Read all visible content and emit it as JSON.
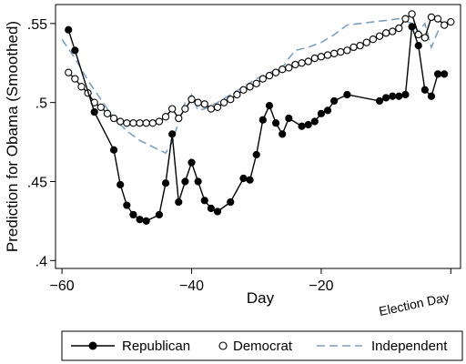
{
  "chart_data": {
    "type": "line",
    "title": "",
    "xlabel": "Day",
    "ylabel": "Prediction for Obama (Smoothed)",
    "xlim": [
      -61,
      1.5
    ],
    "ylim": [
      0.395,
      0.562
    ],
    "xticks": [
      -60,
      -40,
      -20
    ],
    "xtick_labels": [
      "−60",
      "−40",
      "−20"
    ],
    "yticks": [
      0.4,
      0.45,
      0.5,
      0.55
    ],
    "ytick_labels": [
      ".4",
      ".45",
      ".5",
      ".55"
    ],
    "grid": false,
    "legend_position": "bottom",
    "annotations": [
      {
        "text": "Election Day",
        "x": 0
      }
    ],
    "series": [
      {
        "name": "Republican",
        "style": "solid line, filled circle markers",
        "color": "#000000",
        "points": [
          [
            -59,
            0.546
          ],
          [
            -58,
            0.533
          ],
          [
            -55,
            0.494
          ],
          [
            -52,
            0.47
          ],
          [
            -51,
            0.448
          ],
          [
            -50,
            0.435
          ],
          [
            -49,
            0.429
          ],
          [
            -48,
            0.426
          ],
          [
            -47,
            0.425
          ],
          [
            -45,
            0.429
          ],
          [
            -44,
            0.449
          ],
          [
            -43,
            0.48
          ],
          [
            -42,
            0.437
          ],
          [
            -41,
            0.45
          ],
          [
            -40,
            0.462
          ],
          [
            -39,
            0.45
          ],
          [
            -38,
            0.438
          ],
          [
            -37,
            0.433
          ],
          [
            -36,
            0.431
          ],
          [
            -34,
            0.437
          ],
          [
            -32,
            0.452
          ],
          [
            -31,
            0.451
          ],
          [
            -30,
            0.467
          ],
          [
            -29,
            0.489
          ],
          [
            -28,
            0.498
          ],
          [
            -27,
            0.487
          ],
          [
            -26,
            0.48
          ],
          [
            -25,
            0.49
          ],
          [
            -23,
            0.485
          ],
          [
            -22,
            0.486
          ],
          [
            -21,
            0.488
          ],
          [
            -20,
            0.493
          ],
          [
            -19,
            0.495
          ],
          [
            -18,
            0.501
          ],
          [
            -16,
            0.505
          ],
          [
            -11,
            0.501
          ],
          [
            -10,
            0.503
          ],
          [
            -9,
            0.504
          ],
          [
            -8,
            0.504
          ],
          [
            -7,
            0.505
          ],
          [
            -6,
            0.548
          ],
          [
            -5,
            0.536
          ],
          [
            -4,
            0.508
          ],
          [
            -3,
            0.504
          ],
          [
            -2,
            0.518
          ],
          [
            -1,
            0.518
          ]
        ]
      },
      {
        "name": "Democrat",
        "style": "solid line, hollow circle markers",
        "color": "#000000",
        "points": [
          [
            -59,
            0.519
          ],
          [
            -58,
            0.515
          ],
          [
            -57,
            0.51
          ],
          [
            -56,
            0.506
          ],
          [
            -55,
            0.5
          ],
          [
            -54,
            0.497
          ],
          [
            -53,
            0.493
          ],
          [
            -52,
            0.49
          ],
          [
            -51,
            0.488
          ],
          [
            -50,
            0.487
          ],
          [
            -49,
            0.487
          ],
          [
            -48,
            0.487
          ],
          [
            -47,
            0.487
          ],
          [
            -46,
            0.487
          ],
          [
            -45,
            0.488
          ],
          [
            -44,
            0.491
          ],
          [
            -43,
            0.496
          ],
          [
            -42,
            0.49
          ],
          [
            -41,
            0.496
          ],
          [
            -40,
            0.502
          ],
          [
            -39,
            0.5
          ],
          [
            -38,
            0.499
          ],
          [
            -37,
            0.496
          ],
          [
            -36,
            0.497
          ],
          [
            -35,
            0.5
          ],
          [
            -34,
            0.502
          ],
          [
            -33,
            0.505
          ],
          [
            -32,
            0.508
          ],
          [
            -31,
            0.51
          ],
          [
            -30,
            0.512
          ],
          [
            -29,
            0.515
          ],
          [
            -28,
            0.517
          ],
          [
            -27,
            0.519
          ],
          [
            -26,
            0.521
          ],
          [
            -25,
            0.522
          ],
          [
            -24,
            0.524
          ],
          [
            -23,
            0.525
          ],
          [
            -22,
            0.526
          ],
          [
            -21,
            0.528
          ],
          [
            -20,
            0.529
          ],
          [
            -19,
            0.53
          ],
          [
            -18,
            0.531
          ],
          [
            -17,
            0.532
          ],
          [
            -16,
            0.533
          ],
          [
            -15,
            0.535
          ],
          [
            -14,
            0.536
          ],
          [
            -13,
            0.538
          ],
          [
            -12,
            0.54
          ],
          [
            -11,
            0.542
          ],
          [
            -10,
            0.544
          ],
          [
            -9,
            0.545
          ],
          [
            -8,
            0.547
          ],
          [
            -7,
            0.553
          ],
          [
            -6,
            0.556
          ],
          [
            -5,
            0.543
          ],
          [
            -4,
            0.541
          ],
          [
            -3,
            0.554
          ],
          [
            -2,
            0.553
          ],
          [
            -1,
            0.549
          ],
          [
            0,
            0.551
          ]
        ]
      },
      {
        "name": "Independent",
        "style": "dashed line, no markers",
        "color": "#7f9fbf",
        "points": [
          [
            -60,
            0.54
          ],
          [
            -58,
            0.528
          ],
          [
            -56,
            0.514
          ],
          [
            -54,
            0.502
          ],
          [
            -52,
            0.49
          ],
          [
            -50,
            0.482
          ],
          [
            -48,
            0.476
          ],
          [
            -46,
            0.472
          ],
          [
            -44,
            0.468
          ],
          [
            -43,
            0.475
          ],
          [
            -42,
            0.488
          ],
          [
            -41,
            0.5
          ],
          [
            -40,
            0.505
          ],
          [
            -39,
            0.495
          ],
          [
            -38,
            0.496
          ],
          [
            -36,
            0.5
          ],
          [
            -34,
            0.505
          ],
          [
            -32,
            0.51
          ],
          [
            -30,
            0.515
          ],
          [
            -28,
            0.519
          ],
          [
            -26,
            0.522
          ],
          [
            -25,
            0.528
          ],
          [
            -24,
            0.533
          ],
          [
            -22,
            0.535
          ],
          [
            -20,
            0.538
          ],
          [
            -18,
            0.543
          ],
          [
            -16,
            0.549
          ],
          [
            -14,
            0.55
          ],
          [
            -12,
            0.551
          ],
          [
            -10,
            0.552
          ],
          [
            -8,
            0.553
          ],
          [
            -6,
            0.55
          ],
          [
            -5,
            0.545
          ],
          [
            -4,
            0.55
          ],
          [
            -3,
            0.535
          ],
          [
            -2,
            0.545
          ],
          [
            -1,
            0.55
          ],
          [
            0,
            0.552
          ]
        ]
      }
    ]
  }
}
